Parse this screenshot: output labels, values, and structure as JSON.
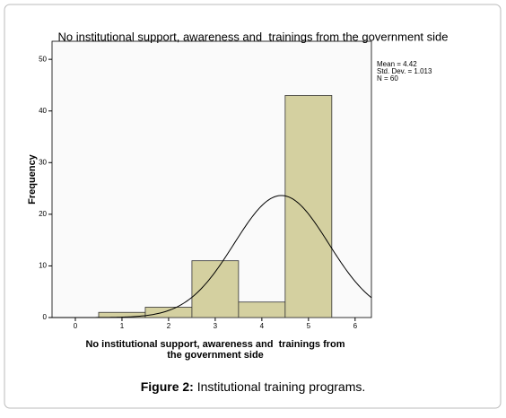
{
  "chart_data": {
    "type": "histogram",
    "title": "No institutional support, awareness and  trainings from the government side",
    "x_label": [
      "No institutional support, awareness and  trainings from",
      "the government side"
    ],
    "y_label": "Frequency",
    "bins": [
      0.5,
      1.5,
      2.5,
      3.5,
      4.5,
      5.5
    ],
    "values": [
      1,
      2,
      11,
      3,
      43
    ],
    "color": "#d4d0a0",
    "xlim": [
      -0.5,
      6.35
    ],
    "xticks": [
      0,
      1,
      2,
      3,
      4,
      5,
      6
    ],
    "ylim": [
      0,
      53.5
    ],
    "yticks": [
      0,
      10,
      20,
      30,
      40,
      50
    ],
    "grid": false,
    "stats": [
      {
        "value": 4.42,
        "label": "Mean = 4.42"
      },
      {
        "value": 1.013,
        "label": "Std. Dev. = 1.013"
      },
      {
        "value": 60,
        "label": "N = 60"
      }
    ]
  },
  "caption": {
    "label": "Figure 2:",
    "text": "Institutional training programs."
  }
}
